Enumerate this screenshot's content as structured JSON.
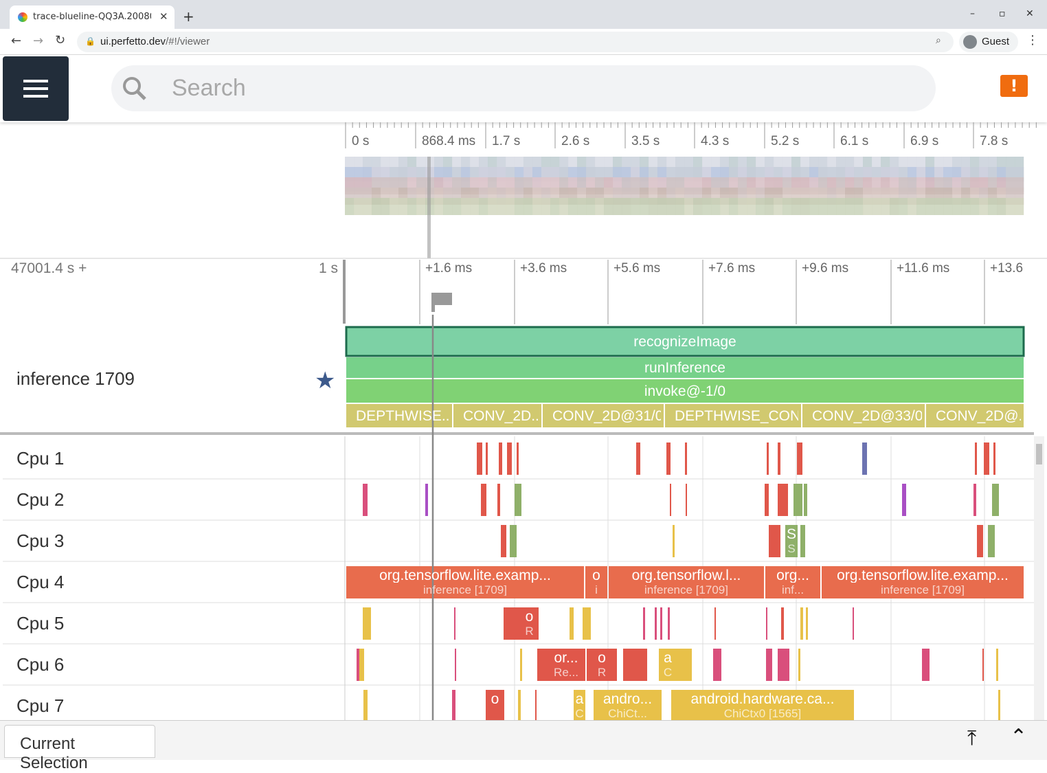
{
  "browser": {
    "tab_title": "trace-blueline-QQ3A.20080",
    "url_host": "ui.perfetto.dev",
    "url_path": "/#!/viewer",
    "profile": "Guest"
  },
  "search": {
    "placeholder": "Search"
  },
  "overview": {
    "ticks": [
      "0 s",
      "868.4 ms",
      "1.7 s",
      "2.6 s",
      "3.5 s",
      "4.3 s",
      "5.2 s",
      "6.1 s",
      "6.9 s",
      "7.8 s"
    ]
  },
  "timeline": {
    "offset": "47001.4 s +",
    "scale": "1 s",
    "ticks": [
      "+1.6 ms",
      "+3.6 ms",
      "+5.6 ms",
      "+7.6 ms",
      "+9.6 ms",
      "+11.6 ms",
      "+13.6"
    ]
  },
  "pinned_track": {
    "name": "inference 1709",
    "rows": [
      [
        "recognizeImage"
      ],
      [
        "runInference"
      ],
      [
        "invoke@-1/0"
      ],
      [
        "DEPTHWISE...",
        "CONV_2D...",
        "CONV_2D@31/0",
        "DEPTHWISE_CON...",
        "CONV_2D@33/0",
        "CONV_2D@..."
      ]
    ]
  },
  "cpu_tracks": [
    {
      "name": "Cpu 1",
      "slices": []
    },
    {
      "name": "Cpu 2",
      "slices": []
    },
    {
      "name": "Cpu 3",
      "slices": [
        {
          "title": "S",
          "subtitle": "S"
        }
      ]
    },
    {
      "name": "Cpu 4",
      "slices": [
        {
          "title": "org.tensorflow.lite.examp...",
          "subtitle": "inference [1709]"
        },
        {
          "title": "o",
          "subtitle": "i"
        },
        {
          "title": "org.tensorflow.l...",
          "subtitle": "inference [1709]"
        },
        {
          "title": "org...",
          "subtitle": "inf..."
        },
        {
          "title": "org.tensorflow.lite.examp...",
          "subtitle": "inference [1709]"
        }
      ]
    },
    {
      "name": "Cpu 5",
      "slices": [
        {
          "title": "o",
          "subtitle": "R"
        }
      ]
    },
    {
      "name": "Cpu 6",
      "slices": [
        {
          "title": "or...",
          "subtitle": "Re..."
        },
        {
          "title": "o",
          "subtitle": "R"
        },
        {
          "title": "a",
          "subtitle": "C"
        }
      ]
    },
    {
      "name": "Cpu 7",
      "slices": [
        {
          "title": "o"
        },
        {
          "title": "a",
          "subtitle": "C"
        },
        {
          "title": "andro...",
          "subtitle": "ChiCt..."
        },
        {
          "title": "android.hardware.ca...",
          "subtitle": "ChiCtx0 [1565]"
        }
      ]
    }
  ],
  "bottom_panel": {
    "tab": "Current Selection"
  }
}
